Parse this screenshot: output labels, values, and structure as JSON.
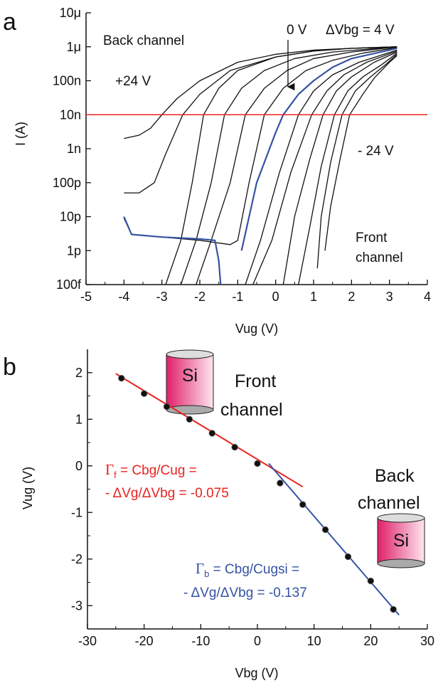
{
  "chart_data": [
    {
      "type": "line",
      "panel": "a",
      "y_scale": "log",
      "ylabel": "I (A)",
      "xlabel": "Vug (V)",
      "xlim": [
        -5,
        4
      ],
      "xticks": [
        -5,
        -4,
        -3,
        -2,
        -1,
        0,
        1,
        2,
        3,
        4
      ],
      "ylim": [
        1e-13,
        1e-05
      ],
      "yticks": [
        {
          "value": 1e-05,
          "label": "10μ"
        },
        {
          "value": 1e-06,
          "label": "1μ"
        },
        {
          "value": 1e-07,
          "label": "100n"
        },
        {
          "value": 1e-08,
          "label": "10n"
        },
        {
          "value": 1e-09,
          "label": "1n"
        },
        {
          "value": 1e-10,
          "label": "100p"
        },
        {
          "value": 1e-11,
          "label": "10p"
        },
        {
          "value": 1e-12,
          "label": "1p"
        },
        {
          "value": 1e-13,
          "label": "100f"
        }
      ],
      "hline": {
        "value": 1e-08,
        "color": "#e8231f"
      },
      "annotations": [
        "Back channel",
        "+24 V",
        "0 V",
        "ΔVbg = 4 V",
        "- 24 V",
        "Front",
        "channel"
      ],
      "series": [
        {
          "color": "#111111",
          "x": [
            -4,
            -3.6,
            -3.3,
            -3.0,
            -2.6,
            -2,
            -1,
            0,
            1,
            2,
            3.2
          ],
          "values": [
            2e-09,
            2.5e-09,
            4e-09,
            1e-08,
            3e-08,
            1e-07,
            3.5e-07,
            6e-07,
            8e-07,
            9e-07,
            1e-06
          ]
        },
        {
          "color": "#111111",
          "x": [
            -4,
            -3.6,
            -3.2,
            -2.9,
            -2.45,
            -2,
            -1.2,
            0,
            1,
            2,
            3.2
          ],
          "values": [
            5e-11,
            5e-11,
            1e-10,
            7e-10,
            1e-08,
            4e-08,
            2e-07,
            5e-07,
            7.5e-07,
            9e-07,
            1e-06
          ]
        },
        {
          "color": "#111111",
          "x": [
            -2.9,
            -2.5,
            -2.2,
            -1.9,
            -1.5,
            -1,
            0,
            1,
            2,
            3.2
          ],
          "values": [
            1e-13,
            2e-12,
            1e-10,
            1e-08,
            6e-08,
            2e-07,
            5e-07,
            7.5e-07,
            9e-07,
            1e-06
          ]
        },
        {
          "color": "#111111",
          "x": [
            -2.5,
            -2.1,
            -1.7,
            -1.35,
            -0.9,
            -0.3,
            0.5,
            1.5,
            3.2
          ],
          "values": [
            1e-13,
            2e-12,
            1e-10,
            1e-08,
            6e-08,
            2e-07,
            4.5e-07,
            7e-07,
            1e-06
          ]
        },
        {
          "color": "#111111",
          "x": [
            -2.1,
            -1.7,
            -1.2,
            -0.8,
            -0.3,
            0.3,
            1,
            2,
            3.2
          ],
          "values": [
            1e-13,
            2e-12,
            1e-10,
            1e-08,
            6e-08,
            2e-07,
            4.5e-07,
            7e-07,
            1e-06
          ]
        },
        {
          "color": "#111111",
          "x": [
            -4,
            -3.8,
            -3,
            -2,
            -1.2,
            -1.0,
            -0.7,
            -0.3,
            0.2,
            0.8,
            1.5,
            2.3,
            3.2
          ],
          "values": [
            9e-12,
            3e-12,
            2.5e-12,
            2e-12,
            1.5e-12,
            2e-12,
            1e-10,
            1e-08,
            6e-08,
            2e-07,
            4e-07,
            6.5e-07,
            9.5e-07
          ]
        },
        {
          "color": "#3653a3",
          "x": [
            -4,
            -3.8,
            -3,
            -2,
            -1.6,
            -1.5,
            -1.45,
            -1.05,
            -0.9,
            -0.5,
            0,
            0.2,
            0.6,
            1,
            1.5,
            2,
            3.2
          ],
          "values": [
            1e-11,
            3e-12,
            2.5e-12,
            2.2e-12,
            2e-12,
            5e-13,
            1e-13,
            null,
            1e-12,
            1e-10,
            3e-09,
            1e-08,
            4e-08,
            1e-07,
            2.5e-07,
            4.5e-07,
            9e-07
          ]
        },
        {
          "color": "#111111",
          "x": [
            -0.8,
            -0.4,
            0.1,
            0.6,
            1.0,
            1.5,
            2.2,
            3.2
          ],
          "values": [
            1e-13,
            2e-12,
            2e-10,
            1e-08,
            5e-08,
            1.5e-07,
            3.5e-07,
            8e-07
          ]
        },
        {
          "color": "#111111",
          "x": [
            -0.6,
            -0.1,
            0.4,
            0.95,
            1.35,
            1.8,
            2.4,
            3.2
          ],
          "values": [
            1e-13,
            2e-12,
            2e-10,
            1e-08,
            5e-08,
            1.5e-07,
            3.5e-07,
            7.5e-07
          ]
        },
        {
          "color": "#111111",
          "x": [
            0.2,
            0.5,
            0.9,
            1.25,
            1.6,
            2.0,
            2.6,
            3.2
          ],
          "values": [
            1e-13,
            1e-11,
            5e-10,
            1e-08,
            5e-08,
            1.3e-07,
            3.5e-07,
            7e-07
          ]
        },
        {
          "color": "#111111",
          "x": [
            0.6,
            0.9,
            1.2,
            1.55,
            1.9,
            2.3,
            2.8,
            3.2
          ],
          "values": [
            1e-13,
            5e-12,
            3e-10,
            1e-08,
            5e-08,
            1.3e-07,
            3e-07,
            6.5e-07
          ]
        },
        {
          "color": "#111111",
          "x": [
            1.1,
            1.2,
            1.45,
            1.75,
            2.1,
            2.5,
            2.9,
            3.2
          ],
          "values": [
            3e-13,
            1e-11,
            4e-10,
            1e-08,
            5e-08,
            1.3e-07,
            3e-07,
            6e-07
          ]
        },
        {
          "color": "#111111",
          "x": [
            1.3,
            1.45,
            1.7,
            1.95,
            2.3,
            2.6,
            3.0,
            3.2
          ],
          "values": [
            1e-12,
            2e-11,
            5e-10,
            1e-08,
            4e-08,
            1.2e-07,
            3.5e-07,
            5.5e-07
          ]
        }
      ]
    },
    {
      "type": "scatter",
      "panel": "b",
      "ylabel": "Vug (V)",
      "xlabel": "Vbg (V)",
      "xlim": [
        -30,
        30
      ],
      "xticks": [
        -30,
        -20,
        -10,
        0,
        10,
        20,
        30
      ],
      "ylim": [
        -3.5,
        2.5
      ],
      "yticks": [
        -3,
        -2,
        -1,
        0,
        1,
        2
      ],
      "x": [
        -24,
        -20,
        -16,
        -12,
        -8,
        -4,
        0,
        4,
        8,
        12,
        16,
        20,
        24
      ],
      "values": [
        1.88,
        1.55,
        1.27,
        1.0,
        0.7,
        0.4,
        0.05,
        -0.37,
        -0.83,
        -1.37,
        -1.95,
        -2.47,
        -3.08
      ],
      "color": "#111111",
      "fits": [
        {
          "color": "#e8231f",
          "x": [
            -25,
            8
          ],
          "values": [
            1.98,
            -0.45
          ]
        },
        {
          "color": "#3653a3",
          "x": [
            2,
            25
          ],
          "values": [
            0.05,
            -3.2
          ]
        }
      ],
      "annotations": {
        "front": [
          "Front",
          "channel"
        ],
        "back": [
          "Back",
          "channel"
        ],
        "si": "Si",
        "gamma_f": {
          "symbol": "Γ",
          "sub": "f",
          "rest": " = Cbg/Cug =",
          "line2": "- ΔVg/ΔVbg = -0.075"
        },
        "gamma_b": {
          "symbol": "Γ",
          "sub": "b",
          "rest": " = Cbg/Cugsi =",
          "line2": "- ΔVg/ΔVbg = -0.137"
        }
      }
    }
  ]
}
